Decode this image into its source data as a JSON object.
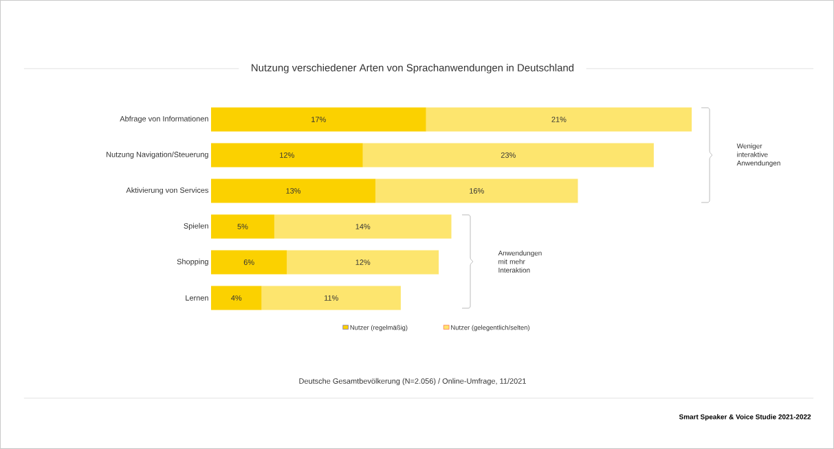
{
  "chart_data": {
    "type": "bar",
    "orientation": "horizontal",
    "stacked": true,
    "title": "Nutzung verschiedener Arten von Sprachanwendungen in Deutschland",
    "categories": [
      "Abfrage von Informationen",
      "Nutzung Navigation/Steuerung",
      "Aktivierung von Services",
      "Spielen",
      "Shopping",
      "Lernen"
    ],
    "series": [
      {
        "name": "Nutzer (regelmäßig)",
        "color": "#fbd100",
        "values": [
          17,
          12,
          13,
          5,
          6,
          4
        ],
        "value_labels": [
          "17%",
          "12%",
          "13%",
          "5%",
          "6%",
          "4%"
        ]
      },
      {
        "name": "Nutzer (gelegentlich/selten)",
        "color": "#fde56e",
        "values": [
          21,
          23,
          16,
          14,
          12,
          11
        ],
        "value_labels": [
          "21%",
          "23%",
          "16%",
          "14%",
          "12%",
          "11%"
        ]
      }
    ],
    "legend": "bottom",
    "annotations": [
      "Weniger interaktive Anwendungen",
      "Anwendungen mit mehr Interaktion",
      "Deutsche Gesamtbevölkerung (N=2.056) / Online-Umfrage, 11/2021",
      "Smart Speaker & Voice Studie 2021-2022"
    ]
  }
}
